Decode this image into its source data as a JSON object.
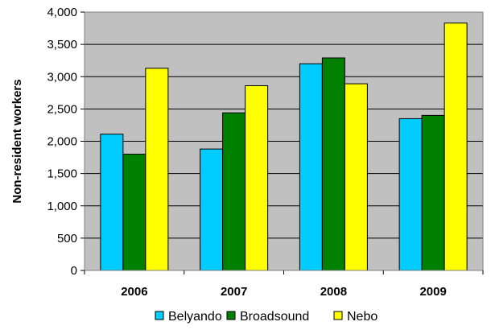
{
  "chart_data": {
    "type": "bar",
    "title": "",
    "xlabel": "",
    "ylabel": "Non-resident workers",
    "categories": [
      "2006",
      "2007",
      "2008",
      "2009"
    ],
    "series": [
      {
        "name": "Belyando",
        "values": [
          2110,
          1880,
          3200,
          2350
        ],
        "color": "#00CCFF"
      },
      {
        "name": "Broadsound",
        "values": [
          1800,
          2440,
          3290,
          2400
        ],
        "color": "#008000"
      },
      {
        "name": "Nebo",
        "values": [
          3130,
          2860,
          2890,
          3830
        ],
        "color": "#FFFF00"
      }
    ],
    "ylim": [
      0,
      4000
    ],
    "yticks": [
      0,
      500,
      1000,
      1500,
      2000,
      2500,
      3000,
      3500,
      4000
    ],
    "ytick_labels": [
      "0",
      "500",
      "1,000",
      "1,500",
      "2,000",
      "2,500",
      "3,000",
      "3,500",
      "4,000"
    ],
    "grid": true,
    "legend_position": "bottom",
    "plot_background": "#C0C0C0",
    "gridline_color": "#000000"
  }
}
